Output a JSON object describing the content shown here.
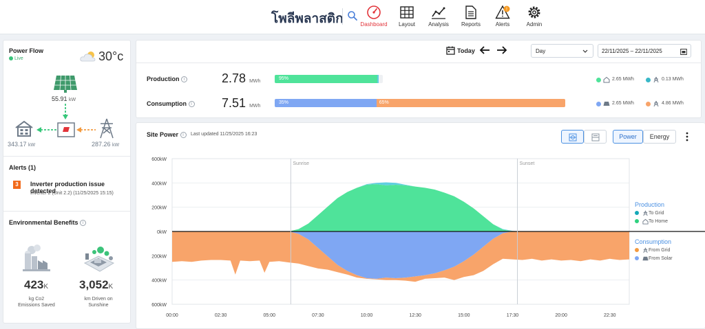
{
  "header": {
    "site_name": "โพลีพลาสติก",
    "nav": [
      {
        "label": "Dashboard",
        "icon": "gauge-icon",
        "active": true
      },
      {
        "label": "Layout",
        "icon": "grid-icon"
      },
      {
        "label": "Analysis",
        "icon": "line-chart-icon"
      },
      {
        "label": "Reports",
        "icon": "document-icon"
      },
      {
        "label": "Alerts",
        "icon": "warning-icon"
      },
      {
        "label": "Admin",
        "icon": "gear-icon"
      }
    ]
  },
  "power_flow": {
    "title": "Power Flow",
    "live": "Live",
    "temperature": "30°c",
    "solar_value": "55.91",
    "solar_unit": "kW",
    "home_value": "343.17",
    "home_unit": "kW",
    "grid_value": "287.26",
    "grid_unit": "kW"
  },
  "alerts": {
    "title": "Alerts (1)",
    "count": "3",
    "message": "Inverter production issue detected",
    "detail": "Inverter 2 (Unit 2.2) (11/25/2025 15:15)"
  },
  "environment": {
    "title": "Environmental Benefits",
    "co2_value": "423",
    "co2_unit": "K",
    "co2_label": "kg Co2 Emissions Saved",
    "km_value": "3,052",
    "km_unit": "K",
    "km_label": "km Driven on Sunshine"
  },
  "toolbar": {
    "today": "Today",
    "period": "Day",
    "date_range": "22/11/2025 – 22/11/2025"
  },
  "summary": {
    "production": {
      "label": "Production",
      "value": "2.78",
      "unit": "MWh",
      "bar_pct": "95%",
      "fraction_green": 0.95,
      "fraction_teal": 0.01,
      "to_home": "2.65 MWh",
      "to_grid": "0.13 MWh"
    },
    "consumption": {
      "label": "Consumption",
      "value": "7.51",
      "unit": "MWh",
      "seg1_pct": "35%",
      "seg2_pct": "65%",
      "fraction_blue": 0.35,
      "from_solar": "2.65 MWh",
      "from_grid": "4.86 MWh"
    }
  },
  "site_power": {
    "title": "Site Power",
    "updated": "Last updated 11/25/2025 16:23",
    "tab_power": "Power",
    "tab_energy": "Energy",
    "legend": {
      "production_title": "Production",
      "to_grid": "To Grid",
      "to_home": "To Home",
      "consumption_title": "Consumption",
      "from_grid": "From Grid",
      "from_solar": "From Solar"
    }
  },
  "colors": {
    "green": "#4fe39a",
    "teal": "#5fcfe0",
    "orange": "#f8a46a",
    "blue": "#7fa7f3",
    "active": "#e2343a"
  },
  "chart_data": {
    "type": "area",
    "x_ticks": [
      "00:00",
      "02:30",
      "05:00",
      "07:30",
      "10:00",
      "12:30",
      "15:00",
      "17:30",
      "20:00",
      "22:30"
    ],
    "y_ticks": [
      "600kW",
      "400kW",
      "200kW",
      "0kW",
      "200kW",
      "400kW",
      "600kW"
    ],
    "ylim": [
      -600,
      600
    ],
    "xlim_hours": [
      0,
      23.5
    ],
    "annotations": [
      {
        "label": "Sunrise",
        "hour": 6.1
      },
      {
        "label": "Sunset",
        "hour": 17.75
      }
    ],
    "x_hours": [
      0,
      0.5,
      1,
      1.5,
      2,
      2.5,
      3,
      3.25,
      3.5,
      4,
      4.5,
      4.75,
      5,
      5.5,
      6,
      6.5,
      7,
      7.5,
      8,
      8.5,
      9,
      9.5,
      10,
      10.5,
      11,
      11.5,
      12,
      12.5,
      13,
      13.5,
      14,
      14.5,
      15,
      15.5,
      16,
      16.5,
      17,
      17.5,
      18,
      18.5,
      19,
      19.5,
      20,
      20.5,
      21,
      21.5,
      22,
      22.5,
      23,
      23.5
    ],
    "series": [
      {
        "name": "To Home",
        "values": [
          0,
          0,
          0,
          0,
          0,
          0,
          0,
          0,
          0,
          0,
          0,
          0,
          0,
          0,
          0,
          20,
          65,
          135,
          205,
          275,
          325,
          360,
          385,
          390,
          380,
          385,
          380,
          370,
          360,
          345,
          320,
          290,
          245,
          190,
          125,
          60,
          15,
          0,
          0,
          0,
          0,
          0,
          0,
          0,
          0,
          0,
          0,
          0,
          0,
          0
        ]
      },
      {
        "name": "To Grid",
        "values": [
          0,
          0,
          0,
          0,
          0,
          0,
          0,
          0,
          0,
          0,
          0,
          0,
          0,
          0,
          0,
          0,
          0,
          0,
          0,
          0,
          0,
          0,
          5,
          10,
          25,
          15,
          5,
          0,
          0,
          0,
          0,
          0,
          0,
          0,
          0,
          0,
          5,
          5,
          0,
          0,
          0,
          0,
          0,
          0,
          0,
          0,
          0,
          0,
          0,
          0
        ]
      },
      {
        "name": "From Solar",
        "values": [
          0,
          0,
          0,
          0,
          0,
          0,
          0,
          0,
          0,
          0,
          0,
          0,
          0,
          0,
          0,
          20,
          65,
          135,
          205,
          275,
          325,
          360,
          385,
          390,
          380,
          385,
          380,
          370,
          360,
          345,
          320,
          290,
          245,
          190,
          125,
          60,
          15,
          0,
          0,
          0,
          0,
          0,
          0,
          0,
          0,
          0,
          0,
          0,
          0,
          0
        ]
      },
      {
        "name": "From Grid",
        "values": [
          250,
          245,
          250,
          240,
          235,
          235,
          240,
          355,
          240,
          245,
          240,
          340,
          250,
          245,
          255,
          245,
          220,
          170,
          110,
          60,
          30,
          20,
          5,
          5,
          20,
          15,
          25,
          45,
          30,
          40,
          60,
          110,
          130,
          170,
          200,
          210,
          210,
          230,
          235,
          225,
          240,
          230,
          240,
          235,
          245,
          230,
          240,
          225,
          235,
          230
        ]
      }
    ]
  }
}
